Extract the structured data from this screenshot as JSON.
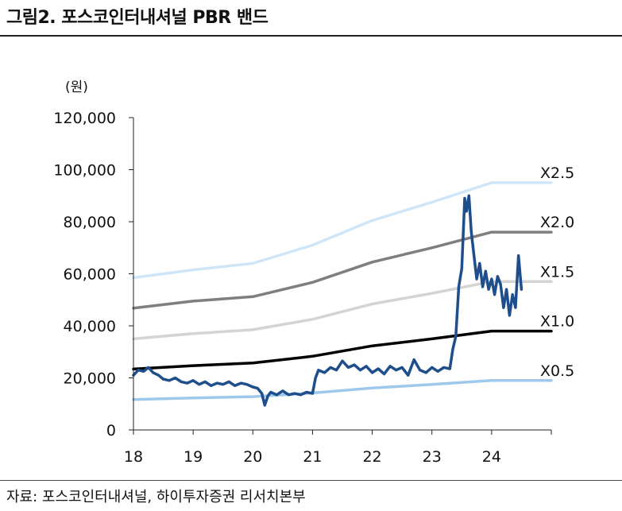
{
  "header": {
    "title": "그림2. 포스코인터내셔널  PBR 밴드"
  },
  "footer": {
    "source": "자료:  포스코인터내셔널, 하이투자증권  리서치본부"
  },
  "chart_data": {
    "type": "line",
    "unit_label": "(원)",
    "ylim": [
      0,
      120000
    ],
    "yticks": [
      "0",
      "20,000",
      "40,000",
      "60,000",
      "80,000",
      "100,000",
      "120,000"
    ],
    "ytick_values": [
      0,
      20000,
      40000,
      60000,
      80000,
      100000,
      120000
    ],
    "xlim": [
      18,
      25
    ],
    "xticks": [
      "18",
      "19",
      "20",
      "21",
      "22",
      "23",
      "24"
    ],
    "xtick_values": [
      18,
      19,
      20,
      21,
      22,
      23,
      24
    ],
    "bands": [
      {
        "label": "X2.5",
        "color": "#cfe6f8",
        "x": [
          18,
          19,
          20,
          21,
          22,
          23,
          24,
          25
        ],
        "y": [
          58500,
          61500,
          64000,
          71000,
          80500,
          87500,
          95000,
          95000
        ]
      },
      {
        "label": "X2.0",
        "color": "#7f7f7f",
        "x": [
          18,
          19,
          20,
          21,
          22,
          23,
          24,
          25
        ],
        "y": [
          46800,
          49500,
          51200,
          56700,
          64500,
          70000,
          76000,
          76000
        ]
      },
      {
        "label": "X1.5",
        "color": "#d4d4d4",
        "x": [
          18,
          19,
          20,
          21,
          22,
          23,
          24,
          25
        ],
        "y": [
          35000,
          37000,
          38500,
          42500,
          48400,
          52500,
          57000,
          57000
        ]
      },
      {
        "label": "X1.0",
        "color": "#000000",
        "x": [
          18,
          19,
          20,
          21,
          22,
          23,
          24,
          25
        ],
        "y": [
          23400,
          24700,
          25700,
          28300,
          32300,
          35000,
          38000,
          38000
        ]
      },
      {
        "label": "X0.5",
        "color": "#9ec9ec",
        "x": [
          18,
          19,
          20,
          21,
          22,
          23,
          24,
          25
        ],
        "y": [
          11700,
          12300,
          12800,
          14200,
          16100,
          17500,
          19000,
          19000
        ]
      }
    ],
    "price": {
      "color": "#1f4e8c",
      "x": [
        18.0,
        18.08,
        18.17,
        18.25,
        18.33,
        18.42,
        18.5,
        18.6,
        18.7,
        18.8,
        18.9,
        19.0,
        19.1,
        19.2,
        19.3,
        19.4,
        19.5,
        19.6,
        19.7,
        19.8,
        19.9,
        20.0,
        20.08,
        20.15,
        20.2,
        20.25,
        20.3,
        20.4,
        20.5,
        20.6,
        20.7,
        20.8,
        20.9,
        21.0,
        21.05,
        21.1,
        21.2,
        21.3,
        21.4,
        21.5,
        21.6,
        21.7,
        21.8,
        21.9,
        22.0,
        22.1,
        22.2,
        22.3,
        22.4,
        22.5,
        22.6,
        22.7,
        22.8,
        22.9,
        23.0,
        23.1,
        23.2,
        23.3,
        23.35,
        23.4,
        23.45,
        23.5,
        23.55,
        23.58,
        23.62,
        23.66,
        23.7,
        23.75,
        23.8,
        23.85,
        23.9,
        23.95,
        24.0,
        24.05,
        24.1,
        24.15,
        24.2,
        24.25,
        24.3,
        24.35,
        24.4,
        24.45,
        24.5
      ],
      "y": [
        21000,
        23000,
        22500,
        24000,
        22000,
        21000,
        19500,
        19000,
        20000,
        18500,
        18000,
        19000,
        17500,
        18500,
        17000,
        18000,
        17500,
        18500,
        17000,
        18000,
        17500,
        16500,
        16000,
        14000,
        9500,
        13000,
        14500,
        13500,
        15000,
        13500,
        14000,
        13500,
        14500,
        14000,
        20000,
        23000,
        22000,
        24000,
        23000,
        26500,
        24000,
        25000,
        23000,
        24500,
        22000,
        23500,
        21500,
        24500,
        23000,
        24000,
        21000,
        27000,
        23000,
        22000,
        24000,
        22500,
        24000,
        23500,
        31000,
        36000,
        55000,
        62000,
        89000,
        84000,
        90000,
        76000,
        68000,
        58000,
        64000,
        55000,
        61000,
        54000,
        58000,
        52000,
        59000,
        56000,
        47000,
        54000,
        44000,
        52000,
        47000,
        67000,
        54000
      ]
    }
  }
}
